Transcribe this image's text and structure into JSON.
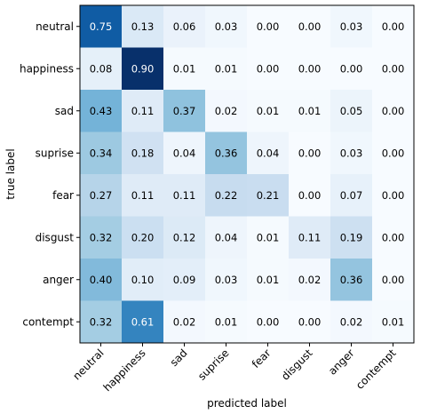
{
  "chart_data": {
    "type": "heatmap",
    "title": "",
    "xlabel": "predicted label",
    "ylabel": "true label",
    "x_categories": [
      "neutral",
      "happiness",
      "sad",
      "suprise",
      "fear",
      "disgust",
      "anger",
      "contempt"
    ],
    "y_categories": [
      "neutral",
      "happiness",
      "sad",
      "suprise",
      "fear",
      "disgust",
      "anger",
      "contempt"
    ],
    "values": [
      [
        0.75,
        0.13,
        0.06,
        0.03,
        0.0,
        0.0,
        0.03,
        0.0
      ],
      [
        0.08,
        0.9,
        0.01,
        0.01,
        0.0,
        0.0,
        0.0,
        0.0
      ],
      [
        0.43,
        0.11,
        0.37,
        0.02,
        0.01,
        0.01,
        0.05,
        0.0
      ],
      [
        0.34,
        0.18,
        0.04,
        0.36,
        0.04,
        0.0,
        0.03,
        0.0
      ],
      [
        0.27,
        0.11,
        0.11,
        0.22,
        0.21,
        0.0,
        0.07,
        0.0
      ],
      [
        0.32,
        0.2,
        0.12,
        0.04,
        0.01,
        0.11,
        0.19,
        0.0
      ],
      [
        0.4,
        0.1,
        0.09,
        0.03,
        0.01,
        0.02,
        0.36,
        0.0
      ],
      [
        0.32,
        0.61,
        0.02,
        0.01,
        0.0,
        0.0,
        0.02,
        0.01
      ]
    ],
    "value_format": "2 decimals",
    "colormap": "Blues",
    "color_range": [
      0,
      0.9
    ],
    "grid": false
  }
}
